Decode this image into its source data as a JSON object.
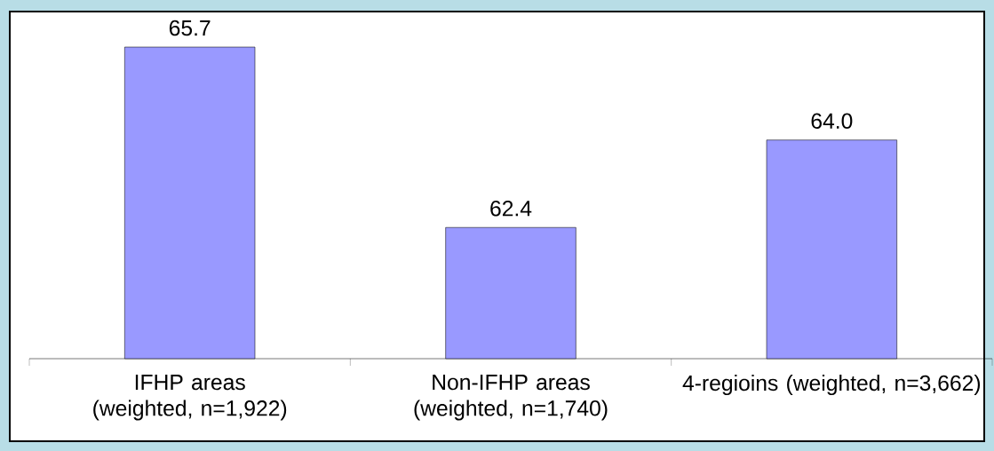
{
  "chart_data": {
    "type": "bar",
    "categories": [
      "IFHP areas (weighted, n=1,922)",
      "Non-IFHP areas (weighted, n=1,740)",
      "4-regioins (weighted, n=3,662)"
    ],
    "values": [
      65.7,
      62.4,
      64.0
    ],
    "value_labels": [
      "65.7",
      "62.4",
      "64.0"
    ],
    "color": "#9999ff",
    "ylim": [
      60,
      66.35
    ]
  }
}
